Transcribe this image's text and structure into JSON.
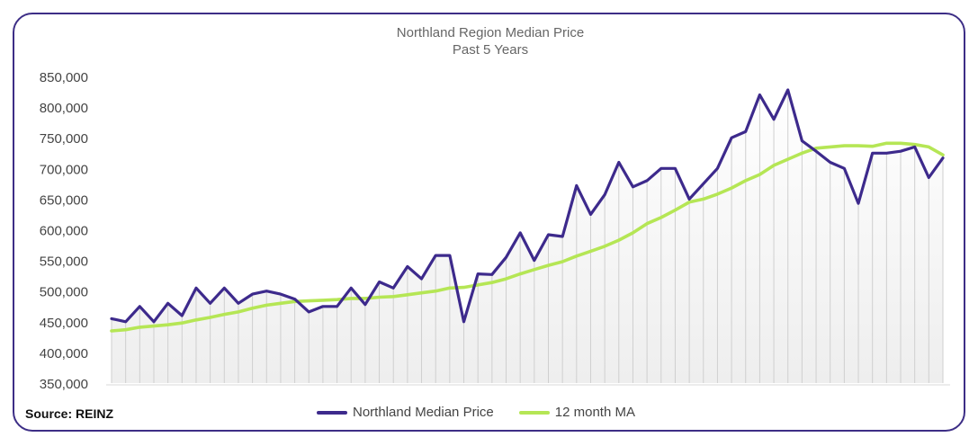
{
  "chart_data": {
    "type": "line",
    "title": "Northland  Region Median Price",
    "subtitle": "Past 5 Years",
    "xlabel": "",
    "ylabel": "",
    "ylim": [
      350000,
      850000
    ],
    "y_ticks": [
      350000,
      400000,
      450000,
      500000,
      550000,
      600000,
      650000,
      700000,
      750000,
      800000,
      850000
    ],
    "y_tick_labels": [
      "350,000",
      "400,000",
      "450,000",
      "500,000",
      "550,000",
      "600,000",
      "650,000",
      "700,000",
      "750,000",
      "800,000",
      "850,000"
    ],
    "legend": "bottom-center",
    "series": [
      {
        "name": "Northland Median Price",
        "color": "#3d2a8c",
        "values": [
          455000,
          450000,
          475000,
          450000,
          480000,
          460000,
          505000,
          480000,
          505000,
          480000,
          495000,
          500000,
          495000,
          487000,
          466000,
          475000,
          475000,
          505000,
          478000,
          515000,
          505000,
          540000,
          520000,
          558000,
          558000,
          450000,
          528000,
          527000,
          555000,
          595000,
          550000,
          592000,
          589000,
          672000,
          625000,
          657000,
          710000,
          670000,
          680000,
          700000,
          700000,
          650000,
          675000,
          700000,
          750000,
          760000,
          820000,
          780000,
          828000,
          745000,
          728000,
          710000,
          700000,
          643000,
          725000,
          725000,
          728000,
          735000,
          685000,
          717000
        ]
      },
      {
        "name": "12 month MA",
        "color": "#b5e655",
        "values": [
          435000,
          437000,
          441000,
          443000,
          445000,
          448000,
          453000,
          457000,
          462000,
          466000,
          472000,
          477000,
          480000,
          483000,
          484000,
          485000,
          486000,
          488000,
          488000,
          490000,
          491000,
          494000,
          497000,
          500000,
          505000,
          506000,
          510000,
          514000,
          520000,
          528000,
          535000,
          542000,
          548000,
          557000,
          565000,
          573000,
          583000,
          595000,
          610000,
          620000,
          632000,
          645000,
          650000,
          658000,
          668000,
          680000,
          690000,
          705000,
          715000,
          725000,
          733000,
          735000,
          737000,
          737000,
          736000,
          741000,
          741000,
          739000,
          735000,
          722000
        ]
      }
    ]
  },
  "source": "Source: REINZ"
}
